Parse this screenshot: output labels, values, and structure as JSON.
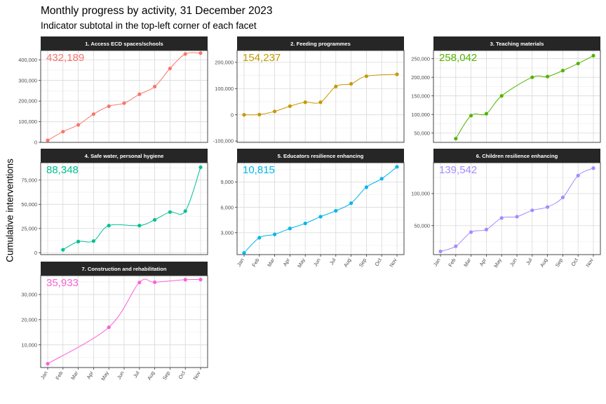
{
  "title": "Monthly progress by activity, 31 December 2023",
  "subtitle": "Indicator subtotal in the top-left corner of each facet",
  "chart_data": {
    "type": "line",
    "ylabel": "Cumulative interventions",
    "xlabel": "",
    "months": [
      "Jan",
      "Feb",
      "Mar",
      "Apr",
      "May",
      "Jun",
      "Jul",
      "Aug",
      "Sep",
      "Oct",
      "Nov"
    ],
    "grid": true,
    "facets": [
      {
        "name": "1. Access ECD spaces/schools",
        "subtotal": "432,189",
        "color": "#F8766D",
        "ylim": [
          0,
          445000
        ],
        "ticks": [
          0,
          100000,
          200000,
          300000,
          400000
        ],
        "tick_labels": [
          "0",
          "100,000",
          "200,000",
          "300,000",
          "400,000"
        ],
        "points": [
          [
            1,
            10000
          ],
          [
            2,
            52000
          ],
          [
            3,
            85000
          ],
          [
            4,
            137000
          ],
          [
            5,
            175000
          ],
          [
            6,
            190000
          ],
          [
            7,
            233000
          ],
          [
            8,
            270000
          ],
          [
            9,
            358000
          ],
          [
            10,
            428000
          ],
          [
            11,
            432189
          ]
        ],
        "curve_markers": [
          5,
          6
        ]
      },
      {
        "name": "2. Feeding programmes",
        "subtotal": "154,237",
        "color": "#C49A00",
        "ylim": [
          -105000,
          245000
        ],
        "ticks": [
          -100000,
          0,
          100000,
          200000
        ],
        "tick_labels": [
          "-100,000",
          "0",
          "100,000",
          "200,000"
        ],
        "points": [
          [
            1,
            0
          ],
          [
            2,
            1000
          ],
          [
            3,
            13000
          ],
          [
            4,
            33000
          ],
          [
            5,
            48000
          ],
          [
            6,
            48000
          ],
          [
            7,
            108000
          ],
          [
            8,
            118000
          ],
          [
            9,
            147000
          ],
          [
            11,
            154237
          ]
        ],
        "curve_markers": []
      },
      {
        "name": "3. Teaching materials",
        "subtotal": "258,042",
        "color": "#53B400",
        "ylim": [
          25000,
          272000
        ],
        "ticks": [
          50000,
          100000,
          150000,
          200000,
          250000
        ],
        "tick_labels": [
          "50,000",
          "100,000",
          "150,000",
          "200,000",
          "250,000"
        ],
        "points": [
          [
            2,
            35000
          ],
          [
            3,
            97000
          ],
          [
            4,
            102000
          ],
          [
            5,
            150000
          ],
          [
            7,
            200000
          ],
          [
            8,
            202000
          ],
          [
            9,
            218000
          ],
          [
            10,
            237000
          ],
          [
            11,
            258042
          ]
        ],
        "curve_markers": []
      },
      {
        "name": "4. Safe water, personal hygiene",
        "subtotal": "88,348",
        "color": "#00C094",
        "ylim": [
          -2000,
          93000
        ],
        "ticks": [
          0,
          25000,
          50000,
          75000
        ],
        "tick_labels": [
          "0",
          "25,000",
          "50,000",
          "75,000"
        ],
        "points": [
          [
            2,
            3000
          ],
          [
            3,
            11500
          ],
          [
            4,
            12000
          ],
          [
            5,
            28000
          ],
          [
            7,
            28000
          ],
          [
            8,
            34000
          ],
          [
            9,
            42000
          ],
          [
            10,
            43000
          ],
          [
            11,
            88348
          ]
        ],
        "curve_markers": []
      },
      {
        "name": "5. Educators resilience enhancing",
        "subtotal": "10,815",
        "color": "#00B6EB",
        "ylim": [
          400,
          11300
        ],
        "ticks": [
          3000,
          6000,
          9000
        ],
        "tick_labels": [
          "3,000",
          "6,000",
          "9,000"
        ],
        "points": [
          [
            1,
            600
          ],
          [
            2,
            2400
          ],
          [
            3,
            2800
          ],
          [
            4,
            3500
          ],
          [
            5,
            4100
          ],
          [
            6,
            4900
          ],
          [
            7,
            5600
          ],
          [
            8,
            6500
          ],
          [
            9,
            8400
          ],
          [
            10,
            9400
          ],
          [
            11,
            10815
          ]
        ],
        "curve_markers": []
      },
      {
        "name": "6. Children resilience enhancing",
        "subtotal": "139,542",
        "color": "#A58AFF",
        "ylim": [
          5000,
          148000
        ],
        "ticks": [
          50000,
          100000
        ],
        "tick_labels": [
          "50,000",
          "100,000"
        ],
        "points": [
          [
            1,
            10000
          ],
          [
            2,
            18000
          ],
          [
            3,
            40000
          ],
          [
            4,
            44000
          ],
          [
            5,
            62000
          ],
          [
            6,
            64000
          ],
          [
            7,
            74000
          ],
          [
            8,
            79000
          ],
          [
            9,
            94000
          ],
          [
            10,
            128000
          ],
          [
            11,
            139542
          ]
        ],
        "curve_markers": []
      },
      {
        "name": "7. Construction and rehabilitation",
        "subtotal": "35,933",
        "color": "#FB61D7",
        "ylim": [
          1000,
          37500
        ],
        "ticks": [
          10000,
          20000,
          30000
        ],
        "tick_labels": [
          "10,000",
          "20,000",
          "30,000"
        ],
        "points": [
          [
            1,
            2500
          ],
          [
            5,
            17000
          ],
          [
            7,
            34800
          ],
          [
            8,
            34900
          ],
          [
            10,
            35900
          ],
          [
            11,
            35933
          ]
        ],
        "curve_markers": []
      }
    ]
  }
}
